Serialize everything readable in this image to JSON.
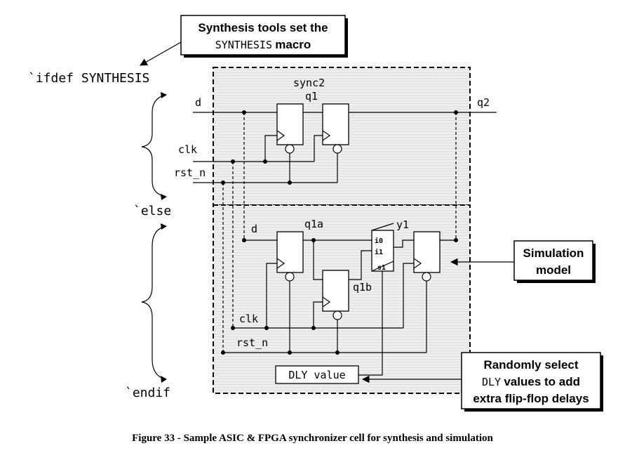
{
  "callouts": {
    "synthesis_line1": "Synthesis tools set the",
    "synthesis_macro": "SYNTHESIS",
    "synthesis_word": "macro",
    "simulation_line1": "Simulation",
    "simulation_line2": "model",
    "random_line1": "Randomly select",
    "random_dly": "DLY",
    "random_line2b": "values to add",
    "random_line3": "extra flip-flop delays"
  },
  "code": {
    "ifdef": "`ifdef SYNTHESIS",
    "else": "`else",
    "endif": "`endif"
  },
  "sync2": {
    "title": "sync2",
    "d": "d",
    "q1": "q1",
    "q2": "q2",
    "clk": "clk",
    "rst_n": "rst_n"
  },
  "sim": {
    "d": "d",
    "q1a": "q1a",
    "q1b": "q1b",
    "y1": "y1",
    "clk": "clk",
    "rst_n": "rst_n",
    "i0": "i0",
    "i1": "i1",
    "s1": "s1",
    "dly_box": "DLY value"
  },
  "caption": "Figure 33 - Sample ASIC & FPGA synchronizer cell for synthesis and simulation",
  "colors": {
    "panel_fill": "#ebebeb",
    "line": "#000000"
  }
}
